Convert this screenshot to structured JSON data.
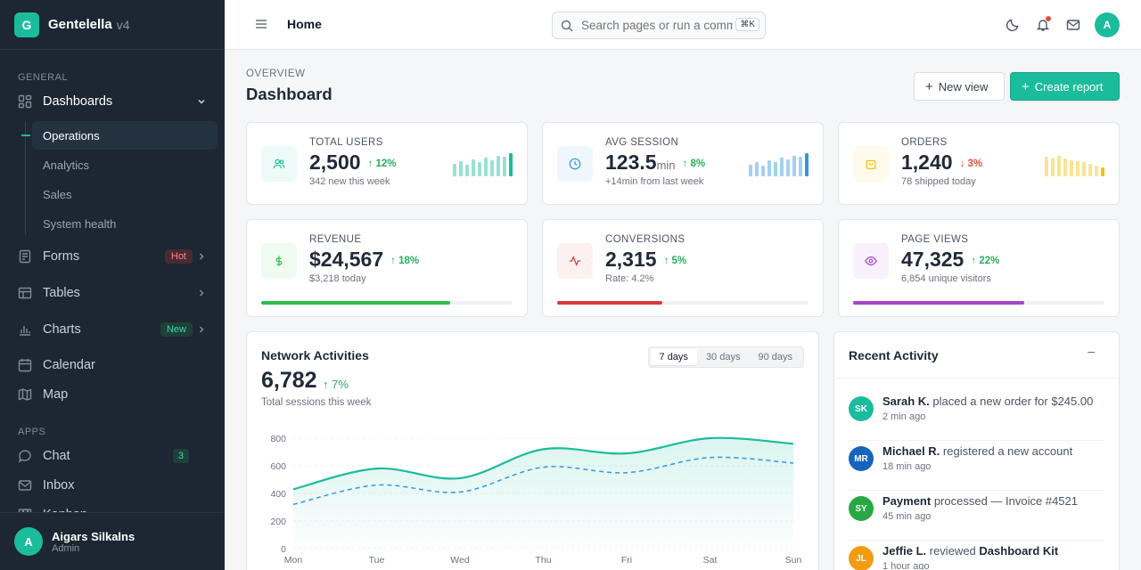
{
  "brand": {
    "logo_letter": "G",
    "name": "Gentelella",
    "version": "v4"
  },
  "sidebar": {
    "general_label": "GENERAL",
    "apps_label": "APPS",
    "dashboards": {
      "label": "Dashboards",
      "children": [
        "Operations",
        "Analytics",
        "Sales",
        "System health"
      ],
      "active": "Operations"
    },
    "items": [
      {
        "label": "Forms",
        "badge": "Hot"
      },
      {
        "label": "Tables",
        "badge": ""
      },
      {
        "label": "Charts",
        "badge": "New"
      },
      {
        "label": "Calendar",
        "badge": ""
      },
      {
        "label": "Map",
        "badge": ""
      }
    ],
    "apps": [
      {
        "label": "Chat",
        "badge": "3"
      },
      {
        "label": "Inbox",
        "badge": ""
      },
      {
        "label": "Kanban",
        "badge": ""
      }
    ],
    "user": {
      "initial": "A",
      "name": "Aigars Silkalns",
      "role": "Admin"
    }
  },
  "topbar": {
    "breadcrumb": "Home",
    "search_placeholder": "Search pages or run a command",
    "shortcut": "⌘K",
    "avatar_initial": "A",
    "has_notification": true
  },
  "header": {
    "overline": "OVERVIEW",
    "title": "Dashboard",
    "new_view_label": "New view",
    "create_report_label": "Create report"
  },
  "stats": [
    {
      "label": "TOTAL USERS",
      "value": "2,500",
      "unit": "",
      "delta": "12%",
      "direction": "up",
      "sub": "342 new this week",
      "icon": "users-icon",
      "accent": "#1abc9c",
      "spark": [
        0.55,
        0.65,
        0.5,
        0.72,
        0.6,
        0.8,
        0.7,
        0.9,
        0.85,
        1.0
      ]
    },
    {
      "label": "AVG SESSION",
      "value": "123.5",
      "unit": "min",
      "delta": "8%",
      "direction": "up",
      "sub": "+14min from last week",
      "icon": "clock-icon",
      "accent": "#3498db",
      "spark": [
        0.5,
        0.6,
        0.48,
        0.7,
        0.62,
        0.8,
        0.72,
        0.88,
        0.84,
        1.0
      ]
    },
    {
      "label": "ORDERS",
      "value": "1,240",
      "unit": "",
      "delta": "3%",
      "direction": "down",
      "sub": "78 shipped today",
      "icon": "shopping-bag-icon",
      "accent": "#f1c40f",
      "spark": [
        0.85,
        0.8,
        0.9,
        0.75,
        0.7,
        0.65,
        0.6,
        0.55,
        0.45,
        0.4
      ]
    },
    {
      "label": "REVENUE",
      "value": "$24,567",
      "unit": "",
      "delta": "18%",
      "direction": "up",
      "sub": "$3,218 today",
      "icon": "dollar-icon",
      "accent": "#2ebb4e",
      "progress": 0.75
    },
    {
      "label": "CONVERSIONS",
      "value": "2,315",
      "unit": "",
      "delta": "5%",
      "direction": "up",
      "sub": "Rate: 4.2%",
      "icon": "activity-icon",
      "accent": "#d63a3a",
      "progress": 0.42
    },
    {
      "label": "PAGE VIEWS",
      "value": "47,325",
      "unit": "",
      "delta": "22%",
      "direction": "up",
      "sub": "6,854 unique visitors",
      "icon": "eye-icon",
      "accent": "#a844c7",
      "progress": 0.68
    }
  ],
  "network": {
    "title": "Network Activities",
    "value": "6,782",
    "delta": "7%",
    "sub": "Total sessions this week",
    "ranges": [
      "7 days",
      "30 days",
      "90 days"
    ],
    "active_range": "7 days"
  },
  "chart_data": {
    "type": "area",
    "categories": [
      "Mon",
      "Tue",
      "Wed",
      "Thu",
      "Fri",
      "Sat",
      "Sun"
    ],
    "yticks": [
      0,
      200,
      400,
      600,
      800
    ],
    "ylim": [
      0,
      800
    ],
    "series": [
      {
        "values": [
          430,
          580,
          510,
          720,
          690,
          800,
          760
        ],
        "color": "#1abc9c",
        "style": "solid-area"
      },
      {
        "values": [
          320,
          460,
          410,
          590,
          550,
          660,
          620
        ],
        "color": "#3498db",
        "style": "dashed"
      }
    ]
  },
  "activity": {
    "title": "Recent Activity",
    "items": [
      {
        "initials": "SK",
        "name": "Sarah K.",
        "action": "placed a new order for $245.00",
        "bold_tail": "",
        "time": "2 min ago",
        "color": "#1abc9c"
      },
      {
        "initials": "MR",
        "name": "Michael R.",
        "action": "registered a new account",
        "bold_tail": "",
        "time": "18 min ago",
        "color": "#1565c0"
      },
      {
        "initials": "SY",
        "name": "Payment",
        "action": "processed — Invoice #4521",
        "bold_tail": "",
        "time": "45 min ago",
        "color": "#27a844"
      },
      {
        "initials": "JL",
        "name": "Jeffie L.",
        "action": "reviewed",
        "bold_tail": "Dashboard Kit",
        "time": "1 hour ago",
        "color": "#f39c12"
      }
    ]
  }
}
